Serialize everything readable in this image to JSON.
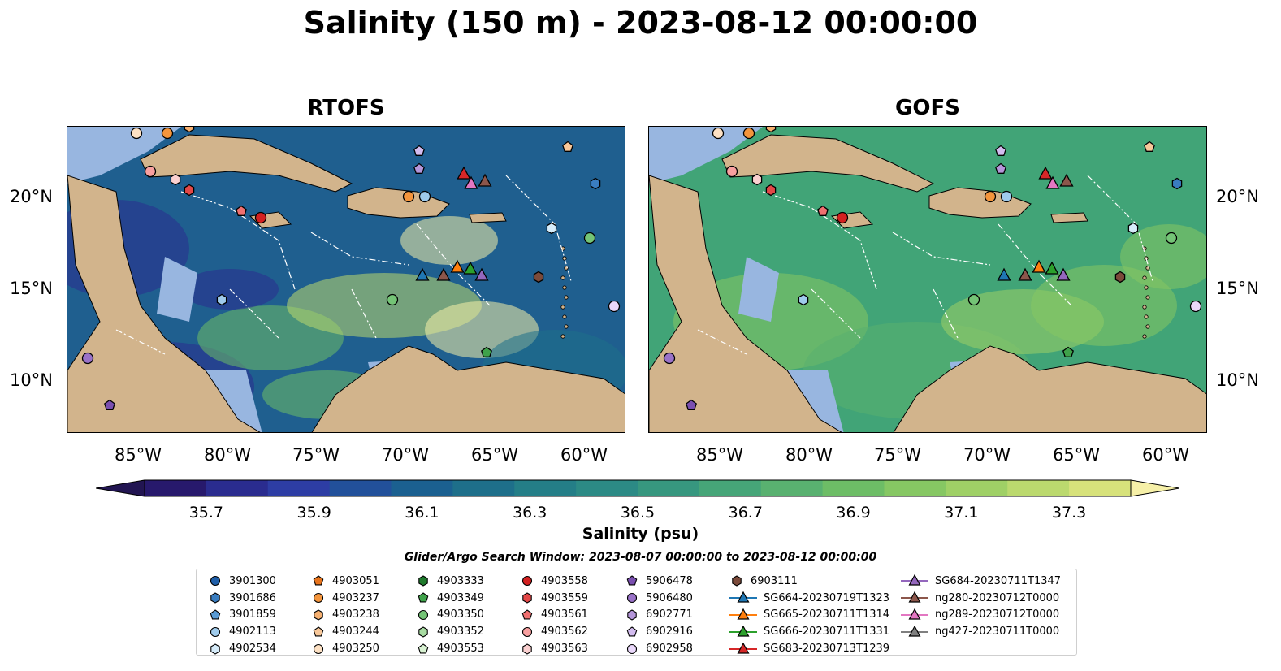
{
  "title": "Salinity (150 m) - 2023-08-12 00:00:00",
  "panels": [
    {
      "title": "RTOFS"
    },
    {
      "title": "GOFS"
    }
  ],
  "lon_ticks": [
    "85°W",
    "80°W",
    "75°W",
    "70°W",
    "65°W",
    "60°W"
  ],
  "lat_ticks": [
    "20°N",
    "15°N",
    "10°N"
  ],
  "colorbar": {
    "label": "Salinity (psu)",
    "ticks": [
      "35.7",
      "35.9",
      "36.1",
      "36.3",
      "36.5",
      "36.7",
      "36.9",
      "37.1",
      "37.3"
    ],
    "colors": [
      "#27196c",
      "#2a2c8f",
      "#2d3da4",
      "#22509a",
      "#1b6090",
      "#1e6f8a",
      "#247e87",
      "#2c8a85",
      "#37977f",
      "#46a578",
      "#59b170",
      "#6dbd66",
      "#86c763",
      "#9fd066",
      "#bbd96e",
      "#d7e27b"
    ],
    "min_color": "#221552",
    "max_color": "#f6f0a8"
  },
  "search_window": "Glider/Argo Search Window: 2023-08-07 00:00:00 to 2023-08-12 00:00:00",
  "legend": {
    "columns": [
      [
        {
          "label": "3901300",
          "marker": "circle",
          "color": "#1f5ea8"
        },
        {
          "label": "3901686",
          "marker": "hexagon",
          "color": "#3a7dc0"
        },
        {
          "label": "3901859",
          "marker": "pentagon",
          "color": "#5a9bd4"
        },
        {
          "label": "4902113",
          "marker": "circle",
          "color": "#9fcbec"
        },
        {
          "label": "4902534",
          "marker": "hexagon",
          "color": "#d6ecfa"
        }
      ],
      [
        {
          "label": "4903051",
          "marker": "pentagon",
          "color": "#e8741c"
        },
        {
          "label": "4903237",
          "marker": "circle",
          "color": "#f4953c"
        },
        {
          "label": "4903238",
          "marker": "hexagon",
          "color": "#f6b070"
        },
        {
          "label": "4903244",
          "marker": "pentagon",
          "color": "#f8c89a"
        },
        {
          "label": "4903250",
          "marker": "circle",
          "color": "#fde1c4"
        }
      ],
      [
        {
          "label": "4903333",
          "marker": "hexagon",
          "color": "#1f7a2c"
        },
        {
          "label": "4903349",
          "marker": "pentagon",
          "color": "#3fa24a"
        },
        {
          "label": "4903350",
          "marker": "circle",
          "color": "#74c476"
        },
        {
          "label": "4903352",
          "marker": "hexagon",
          "color": "#a8dca2"
        },
        {
          "label": "4903553",
          "marker": "pentagon",
          "color": "#d8f2d2"
        }
      ],
      [
        {
          "label": "4903558",
          "marker": "circle",
          "color": "#d32020"
        },
        {
          "label": "4903559",
          "marker": "hexagon",
          "color": "#e34848"
        },
        {
          "label": "4903561",
          "marker": "pentagon",
          "color": "#f07070"
        },
        {
          "label": "4903562",
          "marker": "circle",
          "color": "#f8a0a0"
        },
        {
          "label": "4903563",
          "marker": "hexagon",
          "color": "#fbd0d0"
        }
      ],
      [
        {
          "label": "5906478",
          "marker": "pentagon",
          "color": "#7a4fb0"
        },
        {
          "label": "5906480",
          "marker": "circle",
          "color": "#9a72c8"
        },
        {
          "label": "6902771",
          "marker": "hexagon",
          "color": "#b596da"
        },
        {
          "label": "6902916",
          "marker": "pentagon",
          "color": "#d3bcef"
        },
        {
          "label": "6902958",
          "marker": "circle",
          "color": "#ead8fb"
        }
      ],
      [
        {
          "label": "6903111",
          "marker": "hexagon",
          "color": "#7b4a3a"
        },
        {
          "label": "SG664-20230719T1323",
          "marker": "triangle",
          "color": "#1f77b4"
        },
        {
          "label": "SG665-20230711T1314",
          "marker": "triangle",
          "color": "#ff7f0e"
        },
        {
          "label": "SG666-20230711T1331",
          "marker": "triangle",
          "color": "#2ca02c"
        },
        {
          "label": "SG683-20230713T1239",
          "marker": "triangle",
          "color": "#d62728"
        }
      ],
      [
        {
          "label": "SG684-20230711T1347",
          "marker": "triangle",
          "color": "#9467bd"
        },
        {
          "label": "ng280-20230712T0000",
          "marker": "triangle",
          "color": "#8c564b"
        },
        {
          "label": "ng289-20230712T0000",
          "marker": "triangle",
          "color": "#e377c2"
        },
        {
          "label": "ng427-20230711T0000",
          "marker": "triangle",
          "color": "#7f7f7f"
        }
      ]
    ]
  },
  "map_colors": {
    "land": "#d2b48c",
    "shelf": "#98b6e0",
    "rtofs_ocean": "#1f5f8f",
    "gofs_ocean": "#41a477"
  }
}
